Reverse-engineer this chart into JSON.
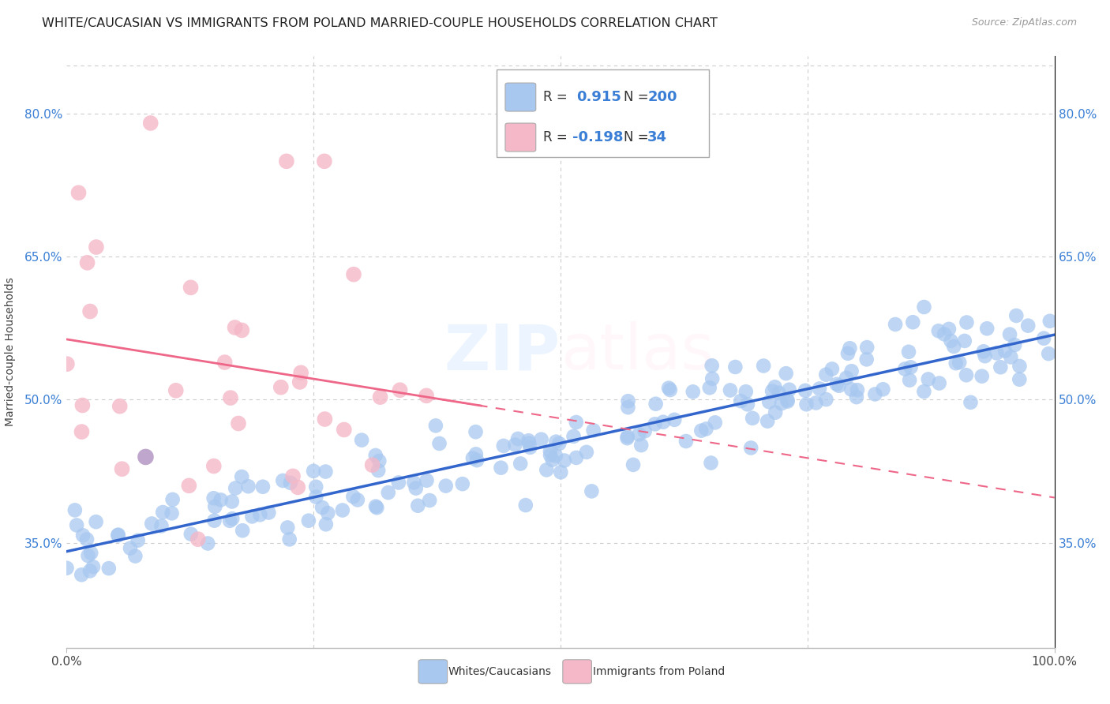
{
  "title": "WHITE/CAUCASIAN VS IMMIGRANTS FROM POLAND MARRIED-COUPLE HOUSEHOLDS CORRELATION CHART",
  "source": "Source: ZipAtlas.com",
  "ylabel": "Married-couple Households",
  "blue_R": 0.915,
  "blue_N": 200,
  "pink_R": -0.198,
  "pink_N": 34,
  "blue_color": "#a8c8f0",
  "pink_color": "#f5b8c8",
  "blue_line_color": "#3366cc",
  "pink_line_color": "#ee6688",
  "legend_label_blue": "Whites/Caucasians",
  "legend_label_pink": "Immigrants from Poland",
  "xlim": [
    0.0,
    1.0
  ],
  "ylim": [
    0.24,
    0.86
  ],
  "ytick_values": [
    0.35,
    0.5,
    0.65,
    0.8
  ],
  "ytick_labels": [
    "35.0%",
    "50.0%",
    "65.0%",
    "80.0%"
  ],
  "xtick_values": [
    0.0,
    1.0
  ],
  "xtick_labels": [
    "0.0%",
    "100.0%"
  ],
  "grid_xticks": [
    0.25,
    0.5,
    0.75
  ],
  "background_color": "#ffffff",
  "grid_color": "#cccccc",
  "purple_dot": [
    0.08,
    0.44
  ],
  "title_fontsize": 11.5,
  "source_fontsize": 9,
  "tick_fontsize": 11,
  "ylabel_fontsize": 10,
  "watermark_zip": "ZIP",
  "watermark_atlas": "atlas",
  "watermark_color_zip": "#d8e8f8",
  "watermark_color_atlas": "#e8d8e0"
}
